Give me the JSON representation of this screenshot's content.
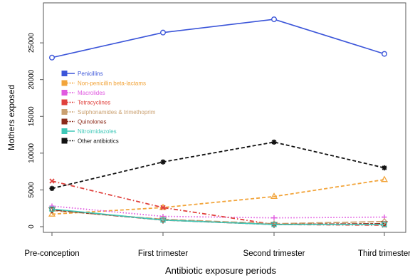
{
  "chart_data": {
    "type": "line",
    "title": "",
    "xlabel": "Antibiotic exposure periods",
    "ylabel": "Mothers exposed",
    "categories": [
      "Pre-conception",
      "First trimester",
      "Second trimester",
      "Third trimester"
    ],
    "yticks": [
      0,
      5000,
      10000,
      15000,
      20000,
      25000
    ],
    "ylim": [
      0,
      28500
    ],
    "grid": false,
    "legend_position": "top-left",
    "series": [
      {
        "name": "Penicillins",
        "color": "#3b55d9",
        "marker": "circle",
        "dash": "solid",
        "values": [
          23000,
          26400,
          28200,
          23500
        ]
      },
      {
        "name": "Non-penicillin beta-lactams",
        "color": "#f2a43a",
        "marker": "triangle",
        "dash": "dashed",
        "values": [
          1700,
          2600,
          4100,
          6400
        ]
      },
      {
        "name": "Macrolides",
        "color": "#e05ae0",
        "marker": "plus",
        "dash": "dotted",
        "values": [
          2800,
          1400,
          1200,
          1300
        ]
      },
      {
        "name": "Tetracyclines",
        "color": "#e0403c",
        "marker": "x",
        "dash": "dashdot",
        "values": [
          6200,
          2600,
          300,
          200
        ]
      },
      {
        "name": "Sulphonamides & trimethoprim",
        "color": "#caa070",
        "marker": "diamond",
        "dash": "longdash",
        "values": [
          2200,
          1000,
          400,
          700
        ]
      },
      {
        "name": "Quinolones",
        "color": "#8b2a1a",
        "marker": "triangle-down",
        "dash": "twodash",
        "values": [
          2300,
          900,
          300,
          400
        ]
      },
      {
        "name": "Nitroimidazoles",
        "color": "#3fc8b8",
        "marker": "square",
        "dash": "solid",
        "values": [
          2400,
          900,
          300,
          300
        ]
      },
      {
        "name": "Other antibiotics",
        "color": "#111111",
        "marker": "asterisk",
        "dash": "dashed",
        "values": [
          5200,
          8800,
          11500,
          8000
        ]
      }
    ]
  }
}
